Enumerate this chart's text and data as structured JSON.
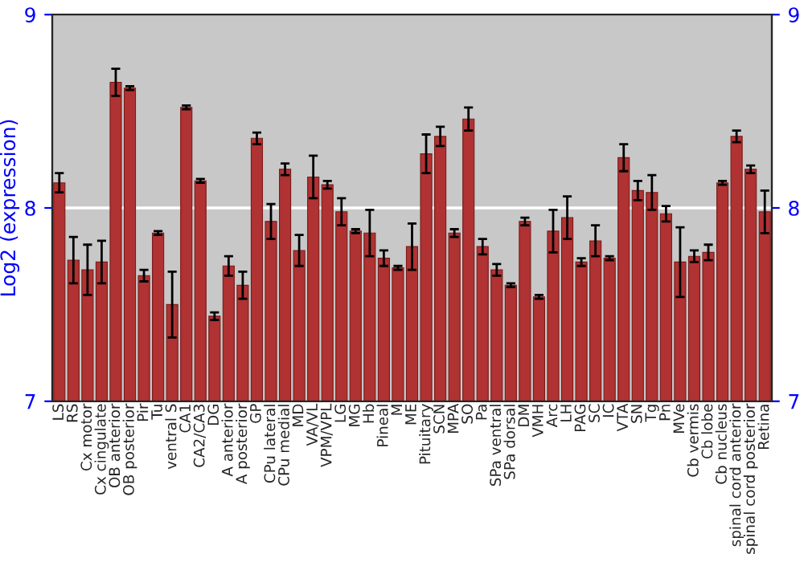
{
  "chart_data": {
    "type": "bar",
    "ylabel": "Log2 (expression)",
    "categories": [
      "LS",
      "RS",
      "Cx motor",
      "Cx cingulate",
      "OB anterior",
      "OB posterior",
      "Pir",
      "Tu",
      "ventral S",
      "CA1",
      "CA2/CA3",
      "DG",
      "A anterior",
      "A posterior",
      "GP",
      "CPu lateral",
      "CPu medial",
      "MD",
      "VA/VL",
      "VPM/VPL",
      "LG",
      "MG",
      "Hb",
      "Pineal",
      "M",
      "ME",
      "Pituitary",
      "SCN",
      "MPA",
      "SO",
      "Pa",
      "SPa ventral",
      "SPa dorsal",
      "DM",
      "VMH",
      "Arc",
      "LH",
      "PAG",
      "SC",
      "IC",
      "VTA",
      "SN",
      "Tg",
      "Pn",
      "MVe",
      "Cb vermis",
      "Cb lobe",
      "Cb nucleus",
      "spinal cord anterior",
      "spinal cord posterior",
      "Retina"
    ],
    "series": [
      {
        "color": "#b03232",
        "values": [
          8.13,
          7.73,
          7.68,
          7.72,
          8.65,
          8.62,
          7.65,
          7.87,
          7.5,
          8.52,
          8.14,
          7.44,
          7.7,
          7.6,
          8.36,
          7.93,
          8.2,
          7.78,
          8.16,
          8.12,
          7.98,
          7.88,
          7.87,
          7.74,
          7.69,
          7.8,
          8.28,
          8.37,
          7.87,
          8.46,
          7.8,
          7.68,
          7.6,
          7.93,
          7.54,
          7.88,
          7.95,
          7.72,
          7.83,
          7.74,
          8.26,
          8.09,
          8.08,
          7.97,
          7.72,
          7.75,
          7.77,
          8.13,
          8.37,
          8.2,
          7.98
        ],
        "errors": [
          0.05,
          0.12,
          0.13,
          0.11,
          0.07,
          0.01,
          0.03,
          0.01,
          0.17,
          0.01,
          0.01,
          0.02,
          0.05,
          0.07,
          0.03,
          0.09,
          0.03,
          0.08,
          0.11,
          0.02,
          0.07,
          0.01,
          0.12,
          0.04,
          0.01,
          0.12,
          0.1,
          0.05,
          0.02,
          0.06,
          0.04,
          0.03,
          0.01,
          0.02,
          0.01,
          0.11,
          0.11,
          0.02,
          0.08,
          0.01,
          0.07,
          0.05,
          0.09,
          0.04,
          0.18,
          0.03,
          0.04,
          0.01,
          0.03,
          0.02,
          0.11
        ]
      }
    ],
    "ylim": [
      7,
      9
    ],
    "yticks": [
      7,
      8,
      9
    ],
    "y2lim": [
      7,
      9
    ],
    "y2ticks": [
      7,
      8,
      9
    ],
    "grid": "y"
  }
}
